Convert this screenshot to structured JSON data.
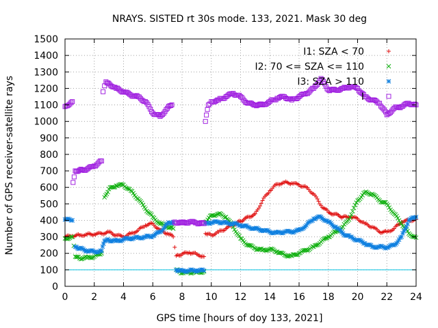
{
  "chart_data": {
    "type": "scatter",
    "title": "NRAYS. SISTED rt 30s mode. 133, 2021. Mask 30 deg",
    "xlabel": "GPS time [hours of doy 133, 2021]",
    "ylabel": "Number of GPS receiver-satellite rays",
    "xlim": [
      0,
      24
    ],
    "ylim": [
      0,
      1500
    ],
    "xticks": [
      0,
      2,
      4,
      6,
      8,
      10,
      12,
      14,
      16,
      18,
      20,
      22,
      24
    ],
    "yticks": [
      0,
      100,
      200,
      300,
      400,
      500,
      600,
      700,
      800,
      900,
      1000,
      1100,
      1200,
      1300,
      1400,
      1500
    ],
    "grid": true,
    "legend_position": "top-right",
    "reference_line": {
      "y": 100,
      "color": "#00c0e0"
    },
    "series": [
      {
        "name": "I1: SZA < 70",
        "color": "#e01010",
        "marker": "plus",
        "points": [
          [
            0.0,
            300
          ],
          [
            0.5,
            305
          ],
          [
            1.0,
            310
          ],
          [
            1.5,
            315
          ],
          [
            2.0,
            315
          ],
          [
            2.5,
            320
          ],
          [
            3.0,
            330
          ],
          [
            3.5,
            310
          ],
          [
            4.0,
            300
          ],
          [
            4.5,
            320
          ],
          [
            5.0,
            340
          ],
          [
            5.5,
            370
          ],
          [
            6.0,
            380
          ],
          [
            6.5,
            340
          ],
          [
            7.0,
            320
          ],
          [
            7.4,
            300
          ],
          [
            7.6,
            185
          ],
          [
            8.0,
            195
          ],
          [
            8.5,
            205
          ],
          [
            9.0,
            195
          ],
          [
            9.5,
            180
          ],
          [
            9.6,
            320
          ],
          [
            10.0,
            310
          ],
          [
            10.5,
            330
          ],
          [
            11.0,
            350
          ],
          [
            12.0,
            395
          ],
          [
            13.0,
            440
          ],
          [
            13.5,
            520
          ],
          [
            14.0,
            580
          ],
          [
            14.5,
            620
          ],
          [
            15.0,
            630
          ],
          [
            15.5,
            625
          ],
          [
            16.0,
            615
          ],
          [
            16.5,
            600
          ],
          [
            17.0,
            560
          ],
          [
            17.5,
            490
          ],
          [
            18.0,
            450
          ],
          [
            19.0,
            420
          ],
          [
            19.5,
            420
          ],
          [
            20.0,
            410
          ],
          [
            20.5,
            380
          ],
          [
            21.0,
            360
          ],
          [
            21.5,
            330
          ],
          [
            22.0,
            330
          ],
          [
            22.5,
            350
          ],
          [
            23.0,
            390
          ],
          [
            23.5,
            400
          ],
          [
            24.0,
            405
          ]
        ]
      },
      {
        "name": "I2: 70 <= SZA <= 110",
        "color": "#10b010",
        "marker": "cross",
        "points": [
          [
            0.0,
            290
          ],
          [
            0.5,
            300
          ],
          [
            0.7,
            180
          ],
          [
            1.0,
            170
          ],
          [
            1.5,
            175
          ],
          [
            2.0,
            180
          ],
          [
            2.5,
            200
          ],
          [
            2.7,
            540
          ],
          [
            3.0,
            590
          ],
          [
            3.5,
            610
          ],
          [
            4.0,
            615
          ],
          [
            4.5,
            580
          ],
          [
            5.0,
            530
          ],
          [
            5.5,
            470
          ],
          [
            6.0,
            420
          ],
          [
            6.5,
            380
          ],
          [
            7.0,
            360
          ],
          [
            7.4,
            350
          ],
          [
            7.6,
            100
          ],
          [
            8.0,
            80
          ],
          [
            8.5,
            85
          ],
          [
            9.0,
            85
          ],
          [
            9.5,
            90
          ],
          [
            9.6,
            390
          ],
          [
            10.0,
            430
          ],
          [
            10.5,
            440
          ],
          [
            11.0,
            420
          ],
          [
            11.5,
            360
          ],
          [
            12.0,
            290
          ],
          [
            12.5,
            250
          ],
          [
            13.0,
            230
          ],
          [
            13.5,
            220
          ],
          [
            14.0,
            225
          ],
          [
            14.5,
            210
          ],
          [
            15.0,
            190
          ],
          [
            15.5,
            185
          ],
          [
            16.0,
            200
          ],
          [
            16.5,
            220
          ],
          [
            17.0,
            240
          ],
          [
            17.5,
            270
          ],
          [
            18.0,
            300
          ],
          [
            18.5,
            330
          ],
          [
            19.0,
            360
          ],
          [
            19.5,
            420
          ],
          [
            20.0,
            520
          ],
          [
            20.5,
            570
          ],
          [
            21.0,
            560
          ],
          [
            21.5,
            520
          ],
          [
            22.0,
            500
          ],
          [
            22.5,
            440
          ],
          [
            23.0,
            380
          ],
          [
            23.5,
            320
          ],
          [
            24.0,
            295
          ]
        ]
      },
      {
        "name": "I3: SZA > 110",
        "color": "#1080e0",
        "marker": "star",
        "points": [
          [
            0.0,
            405
          ],
          [
            0.5,
            400
          ],
          [
            0.7,
            240
          ],
          [
            1.0,
            230
          ],
          [
            1.5,
            215
          ],
          [
            2.0,
            210
          ],
          [
            2.5,
            215
          ],
          [
            2.7,
            275
          ],
          [
            3.0,
            280
          ],
          [
            3.5,
            275
          ],
          [
            4.0,
            285
          ],
          [
            4.5,
            290
          ],
          [
            5.0,
            295
          ],
          [
            5.5,
            300
          ],
          [
            6.0,
            305
          ],
          [
            6.5,
            330
          ],
          [
            7.0,
            380
          ],
          [
            7.4,
            390
          ],
          [
            7.6,
            100
          ],
          [
            8.0,
            95
          ],
          [
            8.5,
            95
          ],
          [
            9.0,
            95
          ],
          [
            9.5,
            95
          ],
          [
            9.6,
            380
          ],
          [
            10.0,
            385
          ],
          [
            10.5,
            390
          ],
          [
            11.0,
            385
          ],
          [
            11.5,
            380
          ],
          [
            12.0,
            370
          ],
          [
            12.5,
            360
          ],
          [
            13.0,
            350
          ],
          [
            13.5,
            340
          ],
          [
            14.0,
            330
          ],
          [
            14.5,
            325
          ],
          [
            15.0,
            330
          ],
          [
            15.5,
            330
          ],
          [
            16.0,
            340
          ],
          [
            16.5,
            370
          ],
          [
            17.0,
            410
          ],
          [
            17.5,
            420
          ],
          [
            18.0,
            390
          ],
          [
            18.5,
            360
          ],
          [
            19.0,
            320
          ],
          [
            19.5,
            300
          ],
          [
            20.0,
            280
          ],
          [
            20.5,
            260
          ],
          [
            21.0,
            240
          ],
          [
            21.5,
            240
          ],
          [
            22.0,
            235
          ],
          [
            22.5,
            250
          ],
          [
            23.0,
            300
          ],
          [
            23.5,
            400
          ],
          [
            24.0,
            420
          ]
        ]
      },
      {
        "name": "I",
        "color": "#a020e0",
        "marker": "square",
        "points": [
          [
            0.0,
            1090
          ],
          [
            0.5,
            1120
          ],
          [
            0.55,
            630
          ],
          [
            0.7,
            700
          ],
          [
            1.0,
            705
          ],
          [
            1.5,
            710
          ],
          [
            2.0,
            730
          ],
          [
            2.5,
            760
          ],
          [
            2.6,
            1180
          ],
          [
            2.8,
            1240
          ],
          [
            3.0,
            1230
          ],
          [
            3.5,
            1200
          ],
          [
            4.0,
            1180
          ],
          [
            4.5,
            1160
          ],
          [
            5.0,
            1150
          ],
          [
            5.5,
            1120
          ],
          [
            6.0,
            1050
          ],
          [
            6.5,
            1030
          ],
          [
            7.0,
            1080
          ],
          [
            7.3,
            1100
          ],
          [
            7.5,
            390
          ],
          [
            8.0,
            385
          ],
          [
            8.5,
            390
          ],
          [
            9.0,
            385
          ],
          [
            9.5,
            380
          ],
          [
            9.6,
            1000
          ],
          [
            9.8,
            1100
          ],
          [
            10.0,
            1120
          ],
          [
            10.5,
            1130
          ],
          [
            11.0,
            1150
          ],
          [
            11.5,
            1170
          ],
          [
            12.0,
            1150
          ],
          [
            12.5,
            1110
          ],
          [
            13.0,
            1100
          ],
          [
            13.5,
            1100
          ],
          [
            14.0,
            1120
          ],
          [
            14.5,
            1140
          ],
          [
            15.0,
            1150
          ],
          [
            15.5,
            1130
          ],
          [
            16.0,
            1150
          ],
          [
            16.5,
            1170
          ],
          [
            17.0,
            1200
          ],
          [
            17.5,
            1260
          ],
          [
            18.0,
            1190
          ],
          [
            18.5,
            1190
          ],
          [
            19.0,
            1200
          ],
          [
            19.5,
            1210
          ],
          [
            20.0,
            1200
          ],
          [
            20.5,
            1150
          ],
          [
            21.0,
            1130
          ],
          [
            21.5,
            1110
          ],
          [
            22.0,
            1040
          ],
          [
            22.5,
            1080
          ],
          [
            23.0,
            1090
          ],
          [
            23.5,
            1110
          ],
          [
            24.0,
            1100
          ]
        ]
      }
    ]
  }
}
